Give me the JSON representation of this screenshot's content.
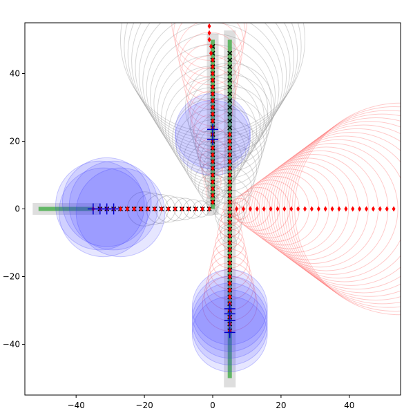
{
  "chart_data": {
    "type": "scatter",
    "title": "",
    "xlabel": "",
    "ylabel": "",
    "xlim": [
      -55,
      55
    ],
    "ylim": [
      -55,
      55
    ],
    "grid": false,
    "x_ticks": [
      -40,
      -20,
      0,
      20,
      40
    ],
    "y_ticks": [
      -40,
      -20,
      0,
      20,
      40
    ],
    "x_tick_labels": [
      "−40",
      "−20",
      "0",
      "20",
      "40"
    ],
    "y_tick_labels": [
      "−40",
      "−20",
      "0",
      "20",
      "40"
    ],
    "colors": {
      "lane": "#d9d9d9",
      "path": "#4caf50",
      "gray_circle": "#8c8c8c",
      "red_circle": "#ff6666",
      "blue_disk": "#3333ff",
      "x_marker": "#000000",
      "diamond": "#ff0000",
      "plus": "#0000cc",
      "axes": "#000000"
    },
    "lanes": [
      {
        "name": "",
        "from": [
          -51,
          0
        ],
        "to": [
          -35,
          0
        ]
      },
      {
        "name": "",
        "from": [
          0,
          50
        ],
        "to": [
          0,
          0
        ]
      },
      {
        "name": "",
        "from": [
          5,
          51
        ],
        "to": [
          5,
          -51
        ]
      }
    ],
    "paths": [
      {
        "name": "",
        "points": [
          [
            -51,
            0
          ],
          [
            -35,
            0
          ]
        ]
      },
      {
        "name": "",
        "points": [
          [
            0,
            50
          ],
          [
            0,
            0
          ]
        ]
      },
      {
        "name": "",
        "points": [
          [
            5,
            50
          ],
          [
            5,
            -50
          ]
        ]
      }
    ],
    "series": [
      {
        "name": "",
        "marker": "x",
        "points": [
          [
            -33,
            0
          ],
          [
            -31,
            0
          ],
          [
            -29,
            0
          ],
          [
            -27,
            0
          ],
          [
            -25,
            0
          ],
          [
            -23,
            0
          ],
          [
            -21,
            0
          ],
          [
            -19,
            0
          ],
          [
            -17,
            0
          ],
          [
            -15,
            0
          ],
          [
            -13,
            0
          ],
          [
            -11,
            0
          ],
          [
            -9,
            0
          ],
          [
            -7,
            0
          ],
          [
            -5,
            0
          ],
          [
            -3,
            0
          ],
          [
            -1,
            0
          ],
          [
            0,
            48
          ],
          [
            0,
            46
          ],
          [
            0,
            44
          ],
          [
            0,
            42
          ],
          [
            0,
            40
          ],
          [
            0,
            38
          ],
          [
            0,
            36
          ],
          [
            0,
            34
          ],
          [
            0,
            32
          ],
          [
            0,
            30
          ],
          [
            0,
            28
          ],
          [
            0,
            26
          ],
          [
            0,
            24
          ],
          [
            0,
            22
          ],
          [
            0,
            20
          ],
          [
            0,
            18
          ],
          [
            0,
            16
          ],
          [
            0,
            14
          ],
          [
            0,
            12
          ],
          [
            0,
            10
          ],
          [
            0,
            8
          ],
          [
            0,
            6
          ],
          [
            0,
            4
          ],
          [
            0,
            2
          ],
          [
            5,
            46
          ],
          [
            5,
            44
          ],
          [
            5,
            42
          ],
          [
            5,
            40
          ],
          [
            5,
            38
          ],
          [
            5,
            36
          ],
          [
            5,
            34
          ],
          [
            5,
            32
          ],
          [
            5,
            30
          ],
          [
            5,
            28
          ],
          [
            5,
            26
          ],
          [
            5,
            24
          ],
          [
            5,
            22
          ],
          [
            5,
            20
          ],
          [
            5,
            18
          ],
          [
            5,
            16
          ],
          [
            5,
            14
          ],
          [
            5,
            12
          ],
          [
            5,
            10
          ],
          [
            5,
            8
          ],
          [
            5,
            6
          ],
          [
            5,
            4
          ],
          [
            5,
            2
          ],
          [
            5,
            0
          ],
          [
            5,
            -2
          ],
          [
            5,
            -4
          ],
          [
            5,
            -6
          ],
          [
            5,
            -8
          ],
          [
            5,
            -10
          ],
          [
            5,
            -12
          ],
          [
            5,
            -14
          ],
          [
            5,
            -16
          ],
          [
            5,
            -18
          ],
          [
            5,
            -20
          ],
          [
            5,
            -22
          ],
          [
            5,
            -24
          ],
          [
            5,
            -26
          ],
          [
            5,
            -28
          ],
          [
            5,
            -30
          ],
          [
            5,
            -32
          ],
          [
            5,
            -34
          ],
          [
            5,
            -36
          ]
        ]
      },
      {
        "name": "",
        "marker": "diamond",
        "points": [
          [
            -35,
            0
          ],
          [
            -33,
            0
          ],
          [
            -31,
            0
          ],
          [
            -29,
            0
          ],
          [
            -27,
            0
          ],
          [
            -25,
            0
          ],
          [
            -23,
            0
          ],
          [
            -21,
            0
          ],
          [
            -19,
            0
          ],
          [
            -17,
            0
          ],
          [
            -15,
            0
          ],
          [
            -13,
            0
          ],
          [
            -11,
            0
          ],
          [
            -9,
            0
          ],
          [
            -7,
            0
          ],
          [
            -5,
            0
          ],
          [
            -3,
            0
          ],
          [
            -1,
            0
          ],
          [
            -1,
            54
          ],
          [
            -1,
            52
          ],
          [
            -1,
            50
          ],
          [
            -0.5,
            48
          ],
          [
            -0.5,
            46
          ],
          [
            0,
            44
          ],
          [
            0,
            42
          ],
          [
            0,
            40
          ],
          [
            0,
            38
          ],
          [
            0,
            36
          ],
          [
            0,
            34
          ],
          [
            0,
            32
          ],
          [
            0,
            30
          ],
          [
            0,
            28
          ],
          [
            0,
            26
          ],
          [
            0,
            24
          ],
          [
            0,
            22
          ],
          [
            0,
            20
          ],
          [
            0,
            18
          ],
          [
            0,
            16
          ],
          [
            0,
            14
          ],
          [
            0,
            12
          ],
          [
            0,
            10
          ],
          [
            0,
            8
          ],
          [
            0,
            6
          ],
          [
            0,
            4
          ],
          [
            0,
            2
          ],
          [
            5,
            22
          ],
          [
            5,
            20
          ],
          [
            5,
            18
          ],
          [
            5,
            16
          ],
          [
            5,
            14
          ],
          [
            5,
            12
          ],
          [
            5,
            10
          ],
          [
            5,
            8
          ],
          [
            5,
            6
          ],
          [
            5,
            4
          ],
          [
            5,
            2
          ],
          [
            5,
            0
          ],
          [
            5,
            -2
          ],
          [
            5,
            -4
          ],
          [
            5,
            -6
          ],
          [
            5,
            -8
          ],
          [
            5,
            -10
          ],
          [
            5,
            -12
          ],
          [
            5,
            -14
          ],
          [
            5,
            -16
          ],
          [
            5,
            -18
          ],
          [
            5,
            -20
          ],
          [
            5,
            -22
          ],
          [
            5,
            -24
          ],
          [
            5,
            -26
          ],
          [
            5,
            -28
          ],
          [
            5,
            -30
          ],
          [
            5,
            -32
          ],
          [
            5,
            -34
          ],
          [
            5,
            -36
          ],
          [
            7,
            0
          ],
          [
            9,
            0
          ],
          [
            11,
            0
          ],
          [
            13,
            0
          ],
          [
            15,
            0
          ],
          [
            17,
            0
          ],
          [
            19,
            0
          ],
          [
            21,
            0
          ],
          [
            23,
            0
          ],
          [
            25,
            0
          ],
          [
            27,
            0
          ],
          [
            29,
            0
          ],
          [
            31,
            0
          ],
          [
            33,
            0
          ],
          [
            35,
            0
          ],
          [
            37,
            0
          ],
          [
            39,
            0
          ],
          [
            41,
            0
          ],
          [
            43,
            0
          ],
          [
            45,
            0
          ],
          [
            47,
            0
          ],
          [
            49,
            0
          ],
          [
            51,
            0
          ],
          [
            53,
            0
          ]
        ]
      },
      {
        "name": "",
        "marker": "plus",
        "points": [
          [
            -35,
            0
          ],
          [
            -33,
            0
          ],
          [
            -31,
            0
          ],
          [
            -29,
            0
          ],
          [
            0,
            23.5
          ],
          [
            0,
            20.5
          ],
          [
            5,
            -29.5
          ],
          [
            5,
            -31
          ],
          [
            5,
            -33
          ],
          [
            5,
            -36.5
          ]
        ]
      }
    ],
    "blue_disks": [
      {
        "cx": -31,
        "cy": 2,
        "r": 13
      },
      {
        "cx": -29,
        "cy": 1,
        "r": 13
      },
      {
        "cx": -32,
        "cy": -1,
        "r": 13
      },
      {
        "cx": -27,
        "cy": -1,
        "r": 13
      },
      {
        "cx": -33,
        "cy": 1,
        "r": 13
      },
      {
        "cx": 0,
        "cy": 23,
        "r": 11
      },
      {
        "cx": 0,
        "cy": 21,
        "r": 11
      },
      {
        "cx": 5,
        "cy": -29,
        "r": 11
      },
      {
        "cx": 5,
        "cy": -31,
        "r": 11
      },
      {
        "cx": 5,
        "cy": -33,
        "r": 11
      },
      {
        "cx": 5,
        "cy": -35,
        "r": 11
      },
      {
        "cx": 5,
        "cy": -37,
        "r": 11
      }
    ],
    "gray_cone": {
      "apex": [
        0,
        2
      ],
      "end": [
        0,
        50
      ],
      "r0": 2,
      "r1": 27,
      "count": 24
    },
    "gray_cone_h": {
      "apex": [
        -1,
        0
      ],
      "end": [
        -20,
        0
      ],
      "r0": 2,
      "r1": 5,
      "count": 9
    },
    "gray_cone_v2": {
      "apex": [
        5,
        -10
      ],
      "end": [
        5,
        30
      ],
      "r0": 2,
      "r1": 13,
      "count": 16
    },
    "red_cone_right": {
      "apex": [
        6,
        0
      ],
      "end": [
        55,
        0
      ],
      "r0": 2,
      "r1": 31,
      "count": 28
    },
    "red_cone_down": {
      "apex": [
        5,
        0
      ],
      "end": [
        5,
        -28
      ],
      "r0": 2,
      "r1": 8,
      "count": 12
    },
    "red_cone_up": {
      "apex": [
        0,
        5
      ],
      "end": [
        -1,
        55
      ],
      "r0": 2,
      "r1": 11,
      "count": 18
    }
  }
}
